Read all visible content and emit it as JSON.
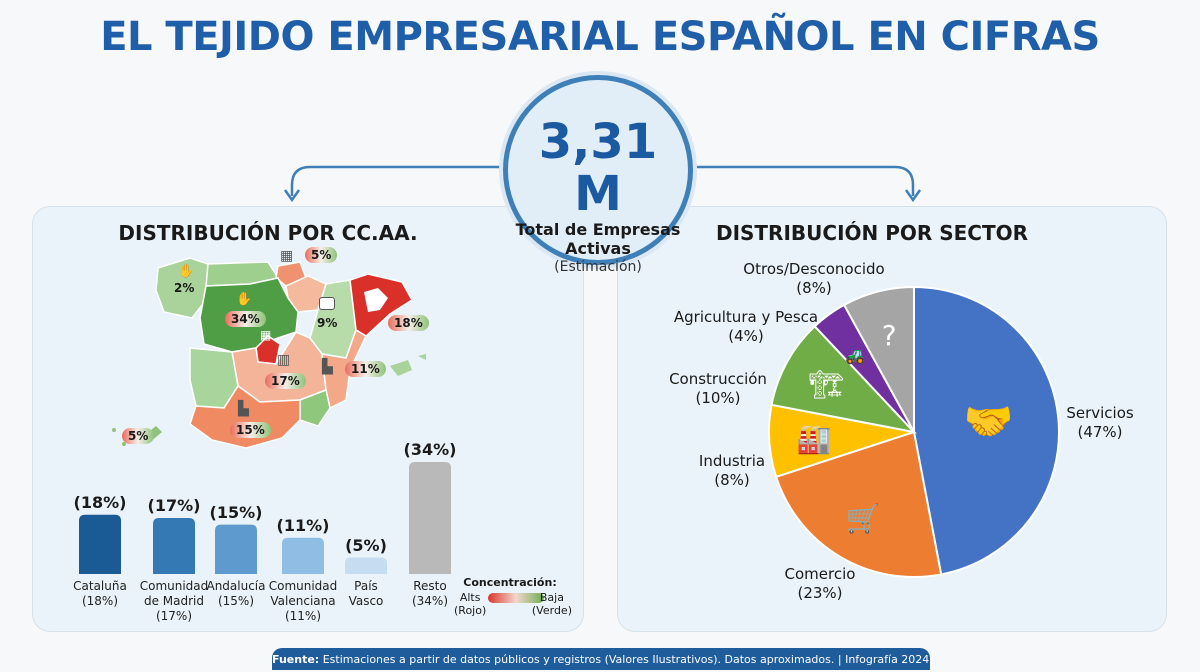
{
  "title": "EL TEJIDO EMPRESARIAL ESPAÑOL EN CIFRAS",
  "hub": {
    "value": "3,31 M",
    "label_line1": "Total de Empresas",
    "label_line2": "Activas",
    "note": "(Estimación)"
  },
  "colors": {
    "brand": "#1f5ea8",
    "high_concentration": "#d9372d",
    "low_concentration": "#6fae52"
  },
  "map": {
    "regions": [
      {
        "name": "Galicia",
        "label": "2%",
        "icon": "hand-coin-icon"
      },
      {
        "name": "Castilla y León",
        "label": "34%",
        "icon": "hand-wheat-icon"
      },
      {
        "name": "País Vasco",
        "label": "5%",
        "icon": "buildings-icon"
      },
      {
        "name": "Aragón",
        "label": "9%",
        "icon": "spain-map-icon"
      },
      {
        "name": "Cataluña",
        "label": "18%",
        "icon": "catalonia-map-icon"
      },
      {
        "name": "Castilla-La Mancha",
        "label": "17%",
        "icon": "office-building-icon"
      },
      {
        "name": "Comunidad Valenciana",
        "label": "11%",
        "icon": "city-icon"
      },
      {
        "name": "Andalucía",
        "label": "15%",
        "icon": "factory-icon"
      },
      {
        "name": "Canarias",
        "label": "5%",
        "icon": ""
      }
    ]
  },
  "chart_data": [
    {
      "type": "bar",
      "title": "DISTRIBUCIÓN POR CC.AA.",
      "categories": [
        "Cataluña",
        "Comunidad de Madrid",
        "Andalucía",
        "Comunidad Valenciana",
        "País Vasco",
        "Resto"
      ],
      "category_lines": [
        [
          "Cataluña",
          "(18%)"
        ],
        [
          "Comunidad",
          "de Madrid",
          "(17%)"
        ],
        [
          "Andalucía",
          "(15%)"
        ],
        [
          "Comunidad",
          "Valenciana",
          "(11%)"
        ],
        [
          "País",
          "Vasco"
        ],
        [
          "Resto",
          "(34%)"
        ]
      ],
      "values": [
        18,
        17,
        15,
        11,
        5,
        34
      ],
      "value_labels": [
        "(18%)",
        "(17%)",
        "(15%)",
        "(11%)",
        "(5%)",
        "(34%)"
      ],
      "bar_colors": [
        "#1a5b96",
        "#3479b4",
        "#5e9acd",
        "#8fbde3",
        "#c6dcf0",
        "#b9b9b9"
      ],
      "unit": "%",
      "ylim": [
        0,
        34
      ],
      "legend": {
        "title": "Concentración:",
        "high": "Alts",
        "high_note": "(Rojo)",
        "low": "Baja",
        "low_note": "(Verde)"
      }
    },
    {
      "type": "pie",
      "title": "DISTRIBUCIÓN POR SECTOR",
      "slices": [
        {
          "name": "Servicios",
          "label": "(47%)",
          "value": 47,
          "color": "#4472c4",
          "icon": "building-handshake-icon"
        },
        {
          "name": "Comercio",
          "label": "(23%)",
          "value": 23,
          "color": "#ed7d31",
          "icon": "shopping-cart-icon"
        },
        {
          "name": "Industria",
          "label": "(8%)",
          "value": 8,
          "color": "#ffc000",
          "icon": "factory-icon"
        },
        {
          "name": "Construcción",
          "label": "(10%)",
          "value": 10,
          "color": "#70ad47",
          "icon": "crane-icon"
        },
        {
          "name": "Agricultura y Pesca",
          "label": "(4%)",
          "value": 4,
          "color": "#7030a0",
          "icon": "tractor-fish-icon"
        },
        {
          "name": "Otros/Desconocido",
          "label": "(8%)",
          "value": 8,
          "color": "#a5a5a5",
          "icon": "question-icon"
        }
      ],
      "start_angle_deg": 0,
      "direction": "clockwise"
    }
  ],
  "footer": {
    "source_label": "Fuente:",
    "text": " Estimaciones a partir de datos públicos y registros (Valores Ilustrativos). Datos aproximados. | Infografía 2024."
  }
}
